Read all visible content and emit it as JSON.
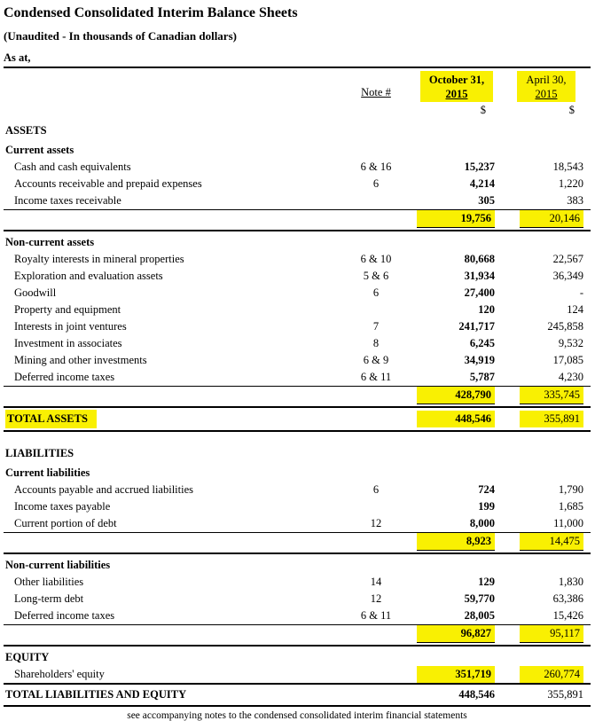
{
  "doc": {
    "title": "Condensed Consolidated Interim Balance Sheets",
    "subtitle": "(Unaudited - In thousands of Canadian dollars)",
    "as_at_label": "As at,",
    "note_header": "Note #",
    "columns": [
      {
        "date_line1": "October 31,",
        "date_line2": "2015",
        "currency": "$"
      },
      {
        "date_line1": "April 30,",
        "date_line2": "2015",
        "currency": "$"
      }
    ],
    "footer_note": "see accompanying notes to the condensed consolidated interim financial statements",
    "highlight_color": "#f9f002"
  },
  "table": {
    "rows": [
      {
        "type": "section",
        "label": "ASSETS"
      },
      {
        "type": "section",
        "label": "Current assets"
      },
      {
        "type": "item",
        "label": "Cash and cash equivalents",
        "note": "6 & 16",
        "v1": "15,237",
        "v2": "18,543"
      },
      {
        "type": "item",
        "label": "Accounts receivable and prepaid expenses",
        "note": "6",
        "v1": "4,214",
        "v2": "1,220"
      },
      {
        "type": "item",
        "label": "Income taxes receivable",
        "note": "",
        "v1": "305",
        "v2": "383",
        "rule": "thin"
      },
      {
        "type": "subtotal",
        "label": "",
        "note": "",
        "v1": "19,756",
        "v2": "20,146",
        "hl_values": true,
        "rule": "thick"
      },
      {
        "type": "section",
        "label": "Non-current assets"
      },
      {
        "type": "item",
        "label": "Royalty interests in mineral properties",
        "note": "6 & 10",
        "v1": "80,668",
        "v2": "22,567"
      },
      {
        "type": "item",
        "label": "Exploration and evaluation assets",
        "note": "5 & 6",
        "v1": "31,934",
        "v2": "36,349"
      },
      {
        "type": "item",
        "label": "Goodwill",
        "note": "6",
        "v1": "27,400",
        "v2": "-"
      },
      {
        "type": "item",
        "label": "Property and equipment",
        "note": "",
        "v1": "120",
        "v2": "124"
      },
      {
        "type": "item",
        "label": "Interests in joint ventures",
        "note": "7",
        "v1": "241,717",
        "v2": "245,858"
      },
      {
        "type": "item",
        "label": "Investment in associates",
        "note": "8",
        "v1": "6,245",
        "v2": "9,532"
      },
      {
        "type": "item",
        "label": "Mining and other investments",
        "note": "6 & 9",
        "v1": "34,919",
        "v2": "17,085"
      },
      {
        "type": "item",
        "label": "Deferred income taxes",
        "note": "6 & 11",
        "v1": "5,787",
        "v2": "4,230",
        "rule": "thin"
      },
      {
        "type": "subtotal",
        "label": "",
        "note": "",
        "v1": "428,790",
        "v2": "335,745",
        "hl_values": true,
        "rule": "thick"
      },
      {
        "type": "total",
        "label": "TOTAL ASSETS",
        "note": "",
        "v1": "448,546",
        "v2": "355,891",
        "hl_label": true,
        "hl_values": true,
        "rule": "thick"
      },
      {
        "type": "spacer"
      },
      {
        "type": "section",
        "label": "LIABILITIES"
      },
      {
        "type": "section",
        "label": "Current liabilities"
      },
      {
        "type": "item",
        "label": "Accounts payable and accrued liabilities",
        "note": "6",
        "v1": "724",
        "v2": "1,790"
      },
      {
        "type": "item",
        "label": "Income taxes payable",
        "note": "",
        "v1": "199",
        "v2": "1,685"
      },
      {
        "type": "item",
        "label": "Current portion of debt",
        "note": "12",
        "v1": "8,000",
        "v2": "11,000",
        "rule": "thin"
      },
      {
        "type": "subtotal",
        "label": "",
        "note": "",
        "v1": "8,923",
        "v2": "14,475",
        "hl_values": true,
        "rule": "thick"
      },
      {
        "type": "section",
        "label": "Non-current liabilities"
      },
      {
        "type": "item",
        "label": "Other liabilities",
        "note": "14",
        "v1": "129",
        "v2": "1,830"
      },
      {
        "type": "item",
        "label": "Long-term debt",
        "note": "12",
        "v1": "59,770",
        "v2": "63,386"
      },
      {
        "type": "item",
        "label": "Deferred income taxes",
        "note": "6 & 11",
        "v1": "28,005",
        "v2": "15,426",
        "rule": "thin"
      },
      {
        "type": "subtotal",
        "label": "",
        "note": "",
        "v1": "96,827",
        "v2": "95,117",
        "hl_values": true,
        "rule": "thick"
      },
      {
        "type": "section",
        "label": "EQUITY"
      },
      {
        "type": "item",
        "label": "Shareholders' equity",
        "note": "",
        "v1": "351,719",
        "v2": "260,774",
        "hl_values": true,
        "rule": "thick"
      },
      {
        "type": "total",
        "label": "TOTAL LIABILITIES AND EQUITY",
        "note": "",
        "v1": "448,546",
        "v2": "355,891",
        "rule": "thick"
      }
    ]
  }
}
